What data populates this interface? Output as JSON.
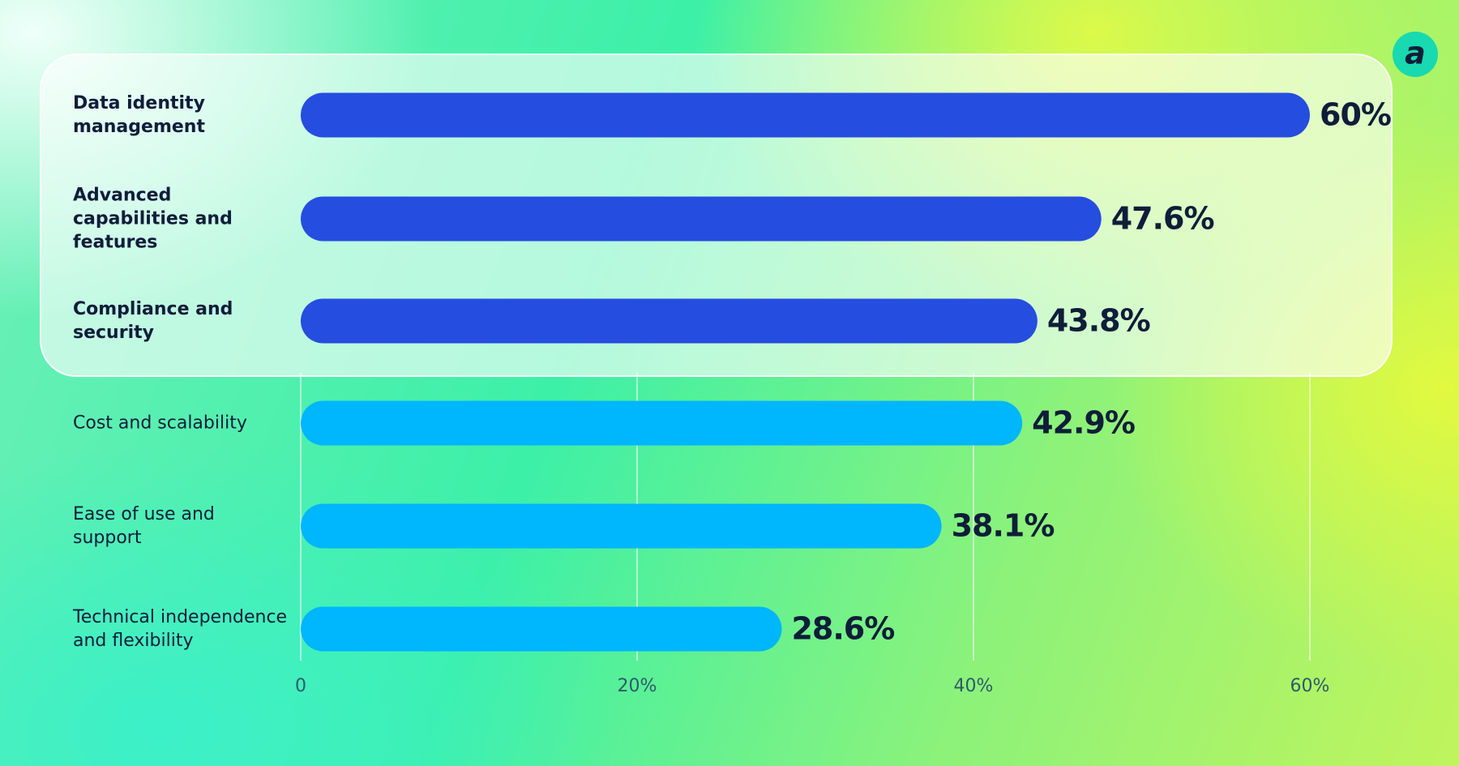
{
  "chart_data": {
    "type": "bar",
    "orientation": "horizontal",
    "categories": [
      "Data identity management",
      "Advanced capabilities and features",
      "Compliance and security",
      "Cost and scalability",
      "Ease of use and support",
      "Technical independence and flexibility"
    ],
    "values": [
      60,
      47.6,
      43.8,
      42.9,
      38.1,
      28.6
    ],
    "value_labels": [
      "60%",
      "47.6%",
      "43.8%",
      "42.9%",
      "38.1%",
      "28.6%"
    ],
    "colors": [
      "#254ddf",
      "#254ddf",
      "#254ddf",
      "#00b6fd",
      "#00b6fd",
      "#00b6fd"
    ],
    "xlim": [
      0,
      60
    ],
    "xticks": [
      0,
      {
        "value": 20,
        "label": "20%"
      },
      {
        "value": 40,
        "label": "40%"
      },
      {
        "value": 60,
        "label": "60%"
      }
    ],
    "grid": true,
    "logo": "a"
  }
}
